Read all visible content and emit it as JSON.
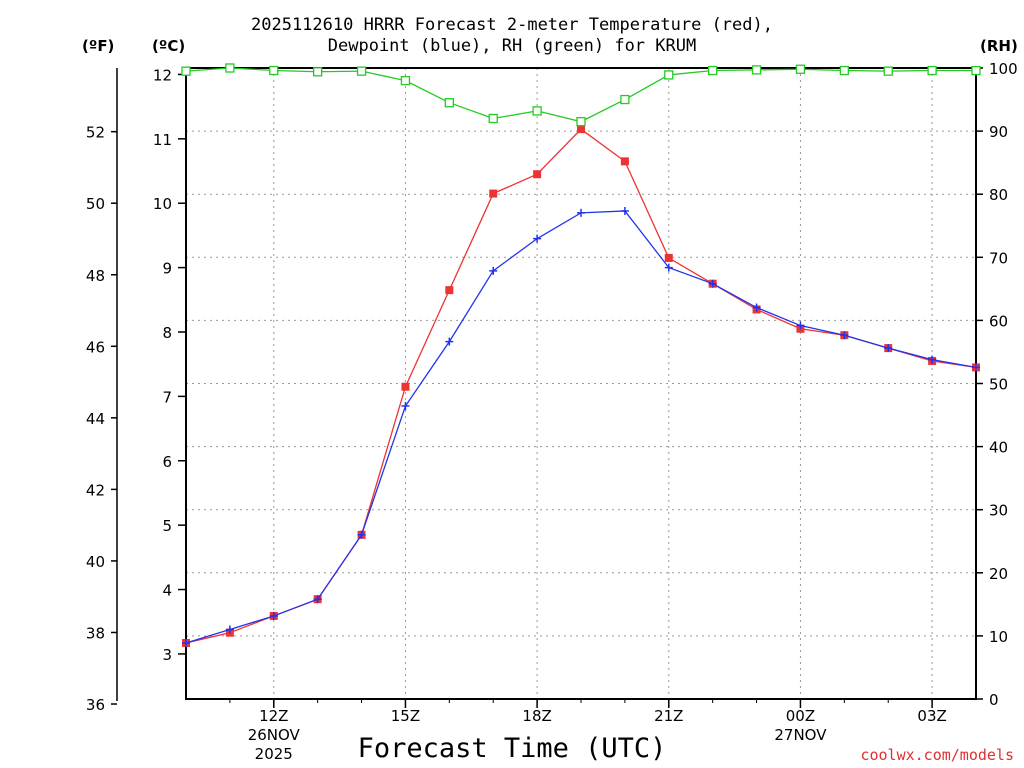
{
  "chart_data": {
    "type": "line",
    "title_line1": "2025112610 HRRR Forecast 2-meter Temperature (red),",
    "title_line2": "Dewpoint (blue), RH (green) for KRUM",
    "xlabel": "Forecast Time (UTC)",
    "credit": "coolwx.com/models",
    "units": {
      "left_f": "(ºF)",
      "left_c": "(ºC)",
      "right_rh": "(RH)"
    },
    "x": [
      10,
      11,
      12,
      13,
      14,
      15,
      16,
      17,
      18,
      19,
      20,
      21,
      22,
      23,
      24,
      25,
      26,
      27,
      28
    ],
    "x_range": [
      10,
      28
    ],
    "x_ticks": [
      {
        "x": 12,
        "lines": [
          "12Z",
          "26NOV",
          "2025"
        ]
      },
      {
        "x": 15,
        "lines": [
          "15Z"
        ]
      },
      {
        "x": 18,
        "lines": [
          "18Z"
        ]
      },
      {
        "x": 21,
        "lines": [
          "21Z"
        ]
      },
      {
        "x": 24,
        "lines": [
          "00Z",
          "27NOV"
        ]
      },
      {
        "x": 27,
        "lines": [
          "03Z"
        ]
      }
    ],
    "axis_c": {
      "range": [
        2.3,
        12.1
      ],
      "ticks": [
        "3",
        "4",
        "5",
        "6",
        "7",
        "8",
        "9",
        "10",
        "11",
        "12"
      ]
    },
    "axis_f": {
      "ticks": [
        "36",
        "38",
        "40",
        "42",
        "44",
        "46",
        "48",
        "50",
        "52"
      ]
    },
    "axis_rh": {
      "range": [
        0,
        100
      ],
      "ticks": [
        "0",
        "10",
        "20",
        "30",
        "40",
        "50",
        "60",
        "70",
        "80",
        "90",
        "100"
      ]
    },
    "series": [
      {
        "name": "Temperature",
        "unit": "C",
        "color": "#ee3333",
        "marker": "filled-square",
        "values": [
          3.17,
          3.33,
          3.59,
          3.85,
          4.85,
          7.15,
          8.65,
          10.15,
          10.45,
          11.15,
          10.65,
          9.15,
          8.75,
          8.35,
          8.05,
          7.95,
          7.75,
          7.55,
          7.45
        ]
      },
      {
        "name": "Dewpoint",
        "unit": "C",
        "color": "#2233ee",
        "marker": "plus",
        "values": [
          3.17,
          3.38,
          3.59,
          3.85,
          4.85,
          6.85,
          7.85,
          8.95,
          9.45,
          9.85,
          9.88,
          9.0,
          8.75,
          8.38,
          8.1,
          7.95,
          7.75,
          7.57,
          7.45
        ]
      },
      {
        "name": "RH",
        "unit": "%",
        "color": "#22cc22",
        "marker": "open-square",
        "values": [
          99.5,
          100,
          99.6,
          99.4,
          99.5,
          98,
          94.5,
          92,
          93.2,
          91.5,
          95,
          98.9,
          99.6,
          99.7,
          99.8,
          99.6,
          99.5,
          99.6,
          99.6
        ]
      }
    ]
  }
}
